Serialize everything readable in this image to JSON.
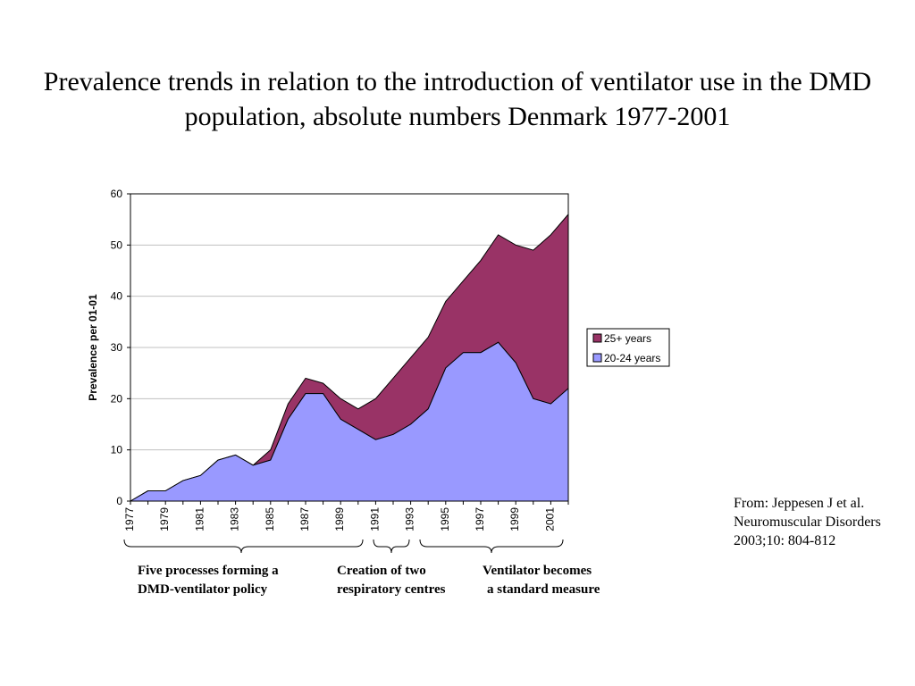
{
  "title": "Prevalence trends in relation to the introduction of ventilator use in the DMD population, absolute numbers Denmark 1977-2001",
  "source_note": "From: Jeppesen J et al. Neuromuscular Disorders 2003;10: 804-812",
  "colors": {
    "series_25_plus": "#993366",
    "series_20_24": "#9999ff",
    "gridline": "#c0c0c0"
  },
  "phases": [
    {
      "line1": "Five processes forming a",
      "line2": "DMD-ventilator policy"
    },
    {
      "line1": "Creation of two",
      "line2": "respiratory centres"
    },
    {
      "line1": "Ventilator becomes",
      "line2": "a standard measure"
    }
  ],
  "chart_data": {
    "type": "area",
    "stacked": true,
    "title": "",
    "xlabel": "",
    "ylabel": "Prevalence per 01-01",
    "ylim": [
      0,
      60
    ],
    "yticks": [
      0,
      10,
      20,
      30,
      40,
      50,
      60
    ],
    "grid": true,
    "legend_position": "right",
    "x": [
      1977,
      1978,
      1979,
      1980,
      1981,
      1982,
      1983,
      1984,
      1985,
      1986,
      1987,
      1988,
      1989,
      1990,
      1991,
      1992,
      1993,
      1994,
      1995,
      1996,
      1997,
      1998,
      1999,
      2000,
      2001,
      2002
    ],
    "xtick_labels": [
      "1977",
      "1979",
      "1981",
      "1983",
      "1985",
      "1987",
      "1989",
      "1991",
      "1993",
      "1995",
      "1997",
      "1999",
      "2001"
    ],
    "series": [
      {
        "name": "20-24 years",
        "values": [
          0,
          2,
          2,
          4,
          5,
          8,
          9,
          7,
          8,
          16,
          21,
          21,
          16,
          14,
          12,
          13,
          15,
          18,
          26,
          29,
          29,
          31,
          27,
          20,
          19,
          22
        ]
      },
      {
        "name": "25+ years",
        "values": [
          0,
          0,
          0,
          0,
          0,
          0,
          0,
          0,
          2,
          3,
          3,
          2,
          4,
          4,
          8,
          11,
          13,
          14,
          13,
          14,
          18,
          21,
          23,
          29,
          33,
          34
        ]
      }
    ],
    "legend_order": [
      "25+ years",
      "20-24 years"
    ]
  }
}
